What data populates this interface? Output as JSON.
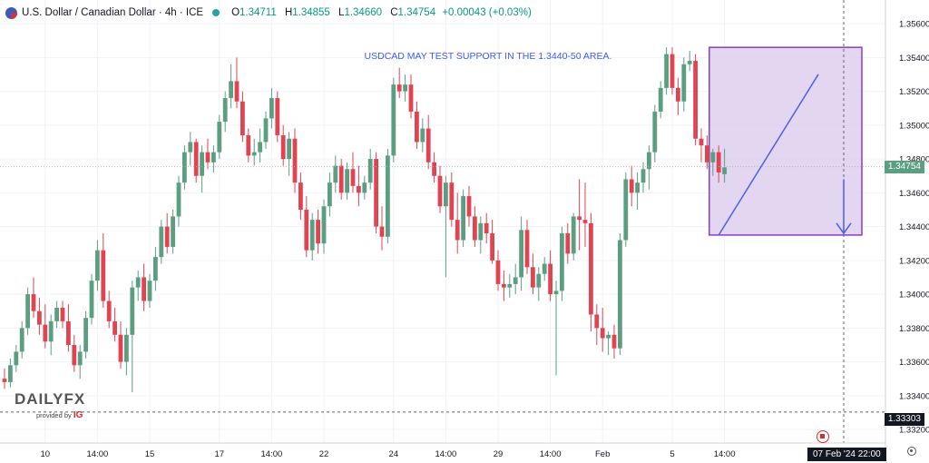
{
  "header": {
    "symbol": "U.S. Dollar / Canadian Dollar · 4h · ICE",
    "open_label": "O",
    "open": "1.34711",
    "high_label": "H",
    "high": "1.34855",
    "low_label": "L",
    "low": "1.34660",
    "close_label": "C",
    "close": "1.34754",
    "change": "+0.00043 (+0.03%)"
  },
  "logo": {
    "brand": "DAILYFX",
    "sub": "provided by",
    "ig": "IG"
  },
  "annotation": "USDCAD MAY TEST SUPPORT IN THE 1.3440-50 AREA.",
  "last_price_label": "1.34754",
  "support_price_label": "1.33303",
  "crosshair_date_label": "07 Feb '24  22:00",
  "colors": {
    "up": "#5b9e82",
    "down": "#e04452",
    "box": "#d9c8ec",
    "box_border": "#8a3cc9",
    "line": "#4d5fe6"
  },
  "chart_data": {
    "type": "candlestick",
    "instrument": "USD/CAD",
    "timeframe": "4h",
    "y_ticks": [
      1.332,
      1.334,
      1.336,
      1.338,
      1.34,
      1.342,
      1.344,
      1.346,
      1.348,
      1.35,
      1.352,
      1.354,
      1.356
    ],
    "y_tick_labels": [
      "1.33200",
      "1.33400",
      "1.33600",
      "1.33800",
      "1.34000",
      "1.34200",
      "1.34400",
      "1.34600",
      "1.34800",
      "1.35000",
      "1.35200",
      "1.35400",
      "1.35600"
    ],
    "ylim": [
      1.3312,
      1.3574
    ],
    "x_tick_labels": [
      "10",
      "14:00",
      "15",
      "17",
      "14:00",
      "22",
      "24",
      "14:00",
      "29",
      "14:00",
      "Feb",
      "5",
      "14:00"
    ],
    "x_tick_index": [
      7,
      16,
      25,
      37,
      46,
      55,
      67,
      76,
      85,
      94,
      103,
      115,
      124
    ],
    "candles": [
      [
        1.335,
        1.3356,
        1.3344,
        1.3348
      ],
      [
        1.3348,
        1.3362,
        1.3345,
        1.3358
      ],
      [
        1.3358,
        1.337,
        1.3354,
        1.3366
      ],
      [
        1.3366,
        1.3384,
        1.3362,
        1.338
      ],
      [
        1.338,
        1.3404,
        1.3376,
        1.34
      ],
      [
        1.34,
        1.341,
        1.3386,
        1.339
      ],
      [
        1.339,
        1.3398,
        1.3376,
        1.3382
      ],
      [
        1.3382,
        1.3394,
        1.3368,
        1.3372
      ],
      [
        1.3372,
        1.3388,
        1.3364,
        1.3384
      ],
      [
        1.3384,
        1.3396,
        1.338,
        1.3392
      ],
      [
        1.3392,
        1.3396,
        1.338,
        1.3384
      ],
      [
        1.3384,
        1.3394,
        1.3366,
        1.337
      ],
      [
        1.337,
        1.3376,
        1.3354,
        1.3358
      ],
      [
        1.3358,
        1.337,
        1.335,
        1.3366
      ],
      [
        1.3366,
        1.339,
        1.3362,
        1.3386
      ],
      [
        1.3386,
        1.3412,
        1.3382,
        1.3408
      ],
      [
        1.3408,
        1.3432,
        1.3402,
        1.3426
      ],
      [
        1.3426,
        1.3436,
        1.3392,
        1.3396
      ],
      [
        1.3396,
        1.3402,
        1.338,
        1.3384
      ],
      [
        1.3384,
        1.3392,
        1.3372,
        1.3376
      ],
      [
        1.3376,
        1.3384,
        1.3356,
        1.336
      ],
      [
        1.336,
        1.338,
        1.3352,
        1.3376
      ],
      [
        1.3376,
        1.3408,
        1.3342,
        1.3404
      ],
      [
        1.3404,
        1.3414,
        1.3396,
        1.341
      ],
      [
        1.341,
        1.3418,
        1.339,
        1.3396
      ],
      [
        1.3396,
        1.3412,
        1.3392,
        1.3408
      ],
      [
        1.3408,
        1.3428,
        1.3402,
        1.3422
      ],
      [
        1.3422,
        1.3444,
        1.3418,
        1.344
      ],
      [
        1.344,
        1.3448,
        1.3424,
        1.3428
      ],
      [
        1.3428,
        1.345,
        1.3424,
        1.3446
      ],
      [
        1.3446,
        1.347,
        1.344,
        1.3466
      ],
      [
        1.3466,
        1.3488,
        1.3462,
        1.3484
      ],
      [
        1.3484,
        1.3496,
        1.3476,
        1.349
      ],
      [
        1.349,
        1.3492,
        1.3466,
        1.347
      ],
      [
        1.347,
        1.3488,
        1.346,
        1.3484
      ],
      [
        1.3484,
        1.3492,
        1.3474,
        1.3478
      ],
      [
        1.3478,
        1.3488,
        1.3472,
        1.3484
      ],
      [
        1.3484,
        1.3506,
        1.348,
        1.3502
      ],
      [
        1.3502,
        1.352,
        1.3496,
        1.3516
      ],
      [
        1.3516,
        1.3536,
        1.351,
        1.3526
      ],
      [
        1.3526,
        1.354,
        1.351,
        1.3514
      ],
      [
        1.3514,
        1.352,
        1.349,
        1.3494
      ],
      [
        1.3494,
        1.3498,
        1.3478,
        1.3482
      ],
      [
        1.3482,
        1.3492,
        1.3476,
        1.3484
      ],
      [
        1.3484,
        1.3498,
        1.3478,
        1.349
      ],
      [
        1.349,
        1.3508,
        1.3486,
        1.3504
      ],
      [
        1.3504,
        1.3522,
        1.3498,
        1.3516
      ],
      [
        1.3516,
        1.352,
        1.349,
        1.3494
      ],
      [
        1.3494,
        1.35,
        1.3476,
        1.348
      ],
      [
        1.348,
        1.3496,
        1.347,
        1.3492
      ],
      [
        1.3492,
        1.3498,
        1.346,
        1.3466
      ],
      [
        1.3466,
        1.3472,
        1.3444,
        1.345
      ],
      [
        1.345,
        1.3458,
        1.3422,
        1.3426
      ],
      [
        1.3426,
        1.3448,
        1.342,
        1.3444
      ],
      [
        1.3444,
        1.345,
        1.3424,
        1.343
      ],
      [
        1.343,
        1.3456,
        1.3424,
        1.3452
      ],
      [
        1.3452,
        1.3472,
        1.3446,
        1.3466
      ],
      [
        1.3466,
        1.3482,
        1.346,
        1.3476
      ],
      [
        1.3476,
        1.348,
        1.3456,
        1.346
      ],
      [
        1.346,
        1.3478,
        1.3456,
        1.3474
      ],
      [
        1.3474,
        1.3484,
        1.346,
        1.3464
      ],
      [
        1.3464,
        1.3476,
        1.3452,
        1.346
      ],
      [
        1.346,
        1.347,
        1.3456,
        1.3466
      ],
      [
        1.3466,
        1.3486,
        1.3462,
        1.348
      ],
      [
        1.348,
        1.3484,
        1.3436,
        1.344
      ],
      [
        1.344,
        1.3452,
        1.3426,
        1.3434
      ],
      [
        1.3434,
        1.3486,
        1.343,
        1.3482
      ],
      [
        1.3482,
        1.3528,
        1.3478,
        1.3524
      ],
      [
        1.3524,
        1.3534,
        1.3516,
        1.352
      ],
      [
        1.352,
        1.353,
        1.3514,
        1.3524
      ],
      [
        1.3524,
        1.353,
        1.3504,
        1.3508
      ],
      [
        1.3508,
        1.3514,
        1.3486,
        1.349
      ],
      [
        1.349,
        1.3504,
        1.3484,
        1.3498
      ],
      [
        1.3498,
        1.3506,
        1.3474,
        1.3478
      ],
      [
        1.3478,
        1.3484,
        1.3466,
        1.347
      ],
      [
        1.347,
        1.3476,
        1.3448,
        1.3452
      ],
      [
        1.3452,
        1.347,
        1.341,
        1.3466
      ],
      [
        1.3466,
        1.3472,
        1.344,
        1.3444
      ],
      [
        1.3444,
        1.346,
        1.3424,
        1.3432
      ],
      [
        1.3432,
        1.3462,
        1.3428,
        1.3458
      ],
      [
        1.3458,
        1.3464,
        1.344,
        1.3446
      ],
      [
        1.3446,
        1.3452,
        1.3428,
        1.3432
      ],
      [
        1.3432,
        1.3446,
        1.3424,
        1.3442
      ],
      [
        1.3442,
        1.3448,
        1.343,
        1.3436
      ],
      [
        1.3436,
        1.3444,
        1.3418,
        1.342
      ],
      [
        1.342,
        1.3426,
        1.3402,
        1.3406
      ],
      [
        1.3406,
        1.3414,
        1.3396,
        1.3404
      ],
      [
        1.3404,
        1.3412,
        1.3398,
        1.3406
      ],
      [
        1.3406,
        1.3418,
        1.34,
        1.341
      ],
      [
        1.341,
        1.3446,
        1.3402,
        1.3438
      ],
      [
        1.3438,
        1.3444,
        1.3412,
        1.3416
      ],
      [
        1.3416,
        1.3424,
        1.34,
        1.3404
      ],
      [
        1.3404,
        1.3416,
        1.3396,
        1.3412
      ],
      [
        1.3412,
        1.3422,
        1.3408,
        1.3418
      ],
      [
        1.3418,
        1.3426,
        1.3396,
        1.34
      ],
      [
        1.34,
        1.3408,
        1.3352,
        1.3402
      ],
      [
        1.3402,
        1.344,
        1.3396,
        1.3436
      ],
      [
        1.3436,
        1.3442,
        1.3418,
        1.3424
      ],
      [
        1.3424,
        1.3448,
        1.342,
        1.3446
      ],
      [
        1.3446,
        1.3468,
        1.3426,
        1.3444
      ],
      [
        1.3444,
        1.3466,
        1.3428,
        1.3442
      ],
      [
        1.3442,
        1.3448,
        1.3378,
        1.3388
      ],
      [
        1.3388,
        1.3394,
        1.337,
        1.338
      ],
      [
        1.338,
        1.3392,
        1.3366,
        1.3374
      ],
      [
        1.3374,
        1.3378,
        1.3364,
        1.3376
      ],
      [
        1.3376,
        1.3382,
        1.3362,
        1.3368
      ],
      [
        1.3368,
        1.3436,
        1.3364,
        1.3432
      ],
      [
        1.3432,
        1.3472,
        1.3428,
        1.3468
      ],
      [
        1.3468,
        1.3476,
        1.3452,
        1.346
      ],
      [
        1.346,
        1.3472,
        1.345,
        1.3466
      ],
      [
        1.3466,
        1.3478,
        1.346,
        1.3474
      ],
      [
        1.3474,
        1.3488,
        1.3462,
        1.3484
      ],
      [
        1.3484,
        1.3512,
        1.3478,
        1.3508
      ],
      [
        1.3508,
        1.3526,
        1.3504,
        1.3522
      ],
      [
        1.3522,
        1.3546,
        1.3518,
        1.3542
      ],
      [
        1.3542,
        1.3546,
        1.3518,
        1.3522
      ],
      [
        1.3522,
        1.3528,
        1.3506,
        1.3514
      ],
      [
        1.3514,
        1.354,
        1.3508,
        1.3536
      ],
      [
        1.3536,
        1.3544,
        1.3532,
        1.3538
      ],
      [
        1.3538,
        1.3542,
        1.3488,
        1.3492
      ],
      [
        1.3492,
        1.3498,
        1.3478,
        1.3488
      ],
      [
        1.3488,
        1.3494,
        1.3474,
        1.3478
      ],
      [
        1.3478,
        1.3486,
        1.347,
        1.3484
      ],
      [
        1.3484,
        1.3488,
        1.3466,
        1.3472
      ],
      [
        1.3471,
        1.3486,
        1.3466,
        1.3475
      ]
    ]
  }
}
